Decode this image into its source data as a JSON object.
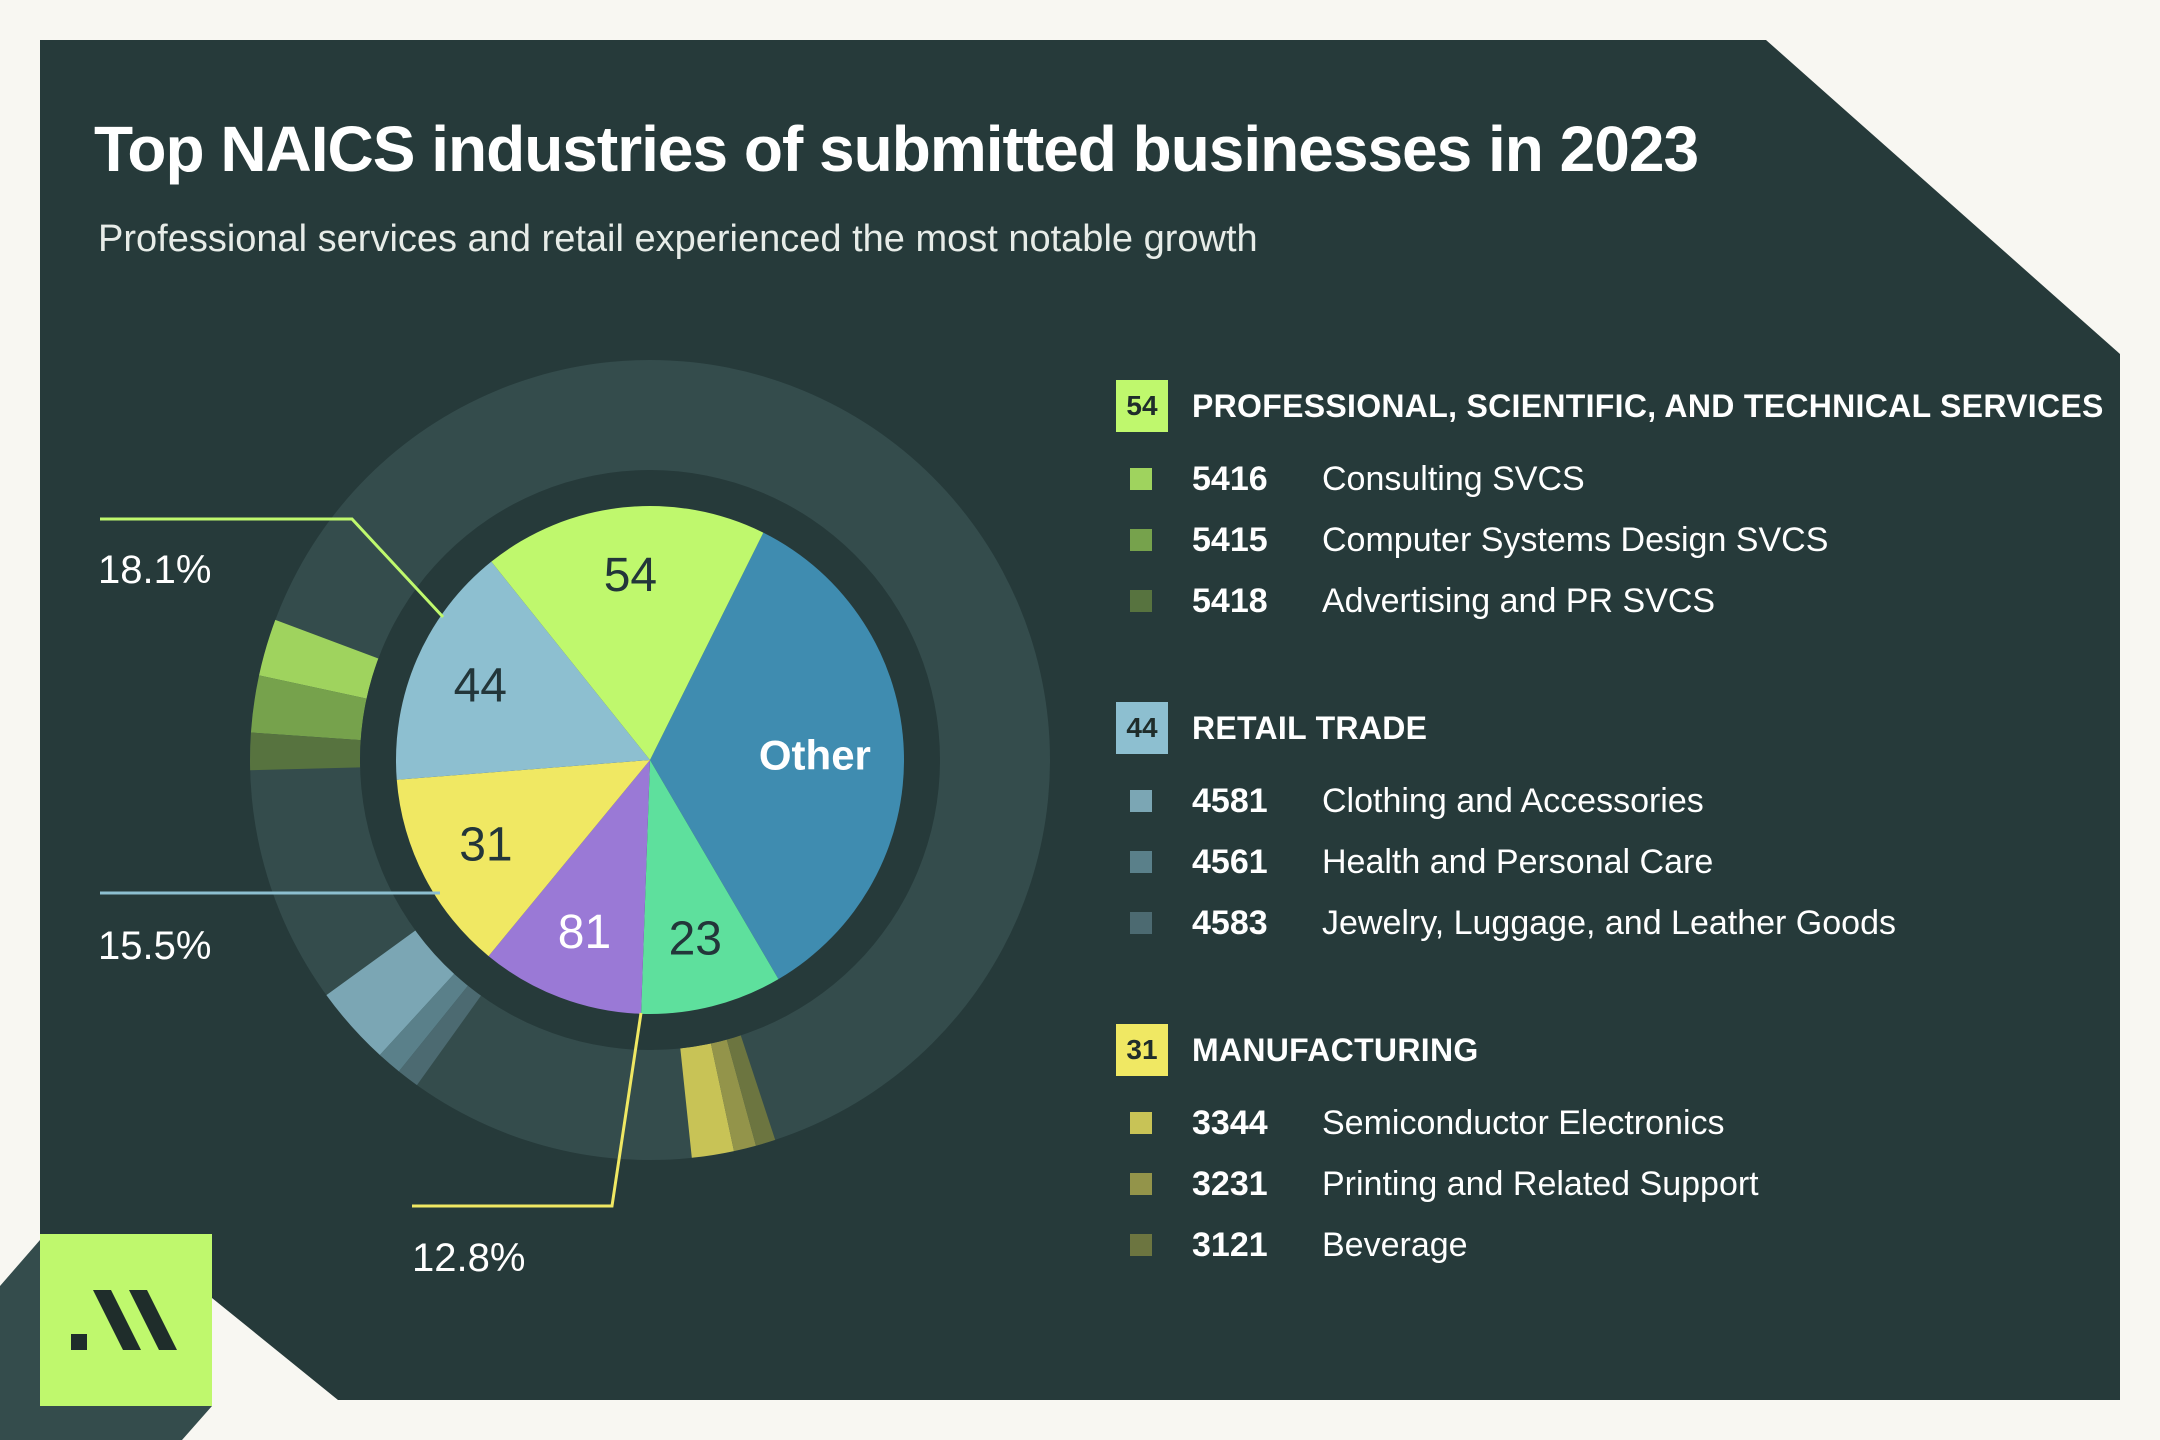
{
  "title": "Top NAICS industries of submitted businesses in 2023",
  "subtitle": "Professional services and retail experienced the most notable growth",
  "chart_data": {
    "type": "pie",
    "title": "Top NAICS industries of submitted businesses in 2023",
    "subtitle": "Professional services and retail experienced the most notable growth",
    "inner_pie": {
      "slices": [
        {
          "label": "Other",
          "value": 34.2,
          "color": "#3f8cb0"
        },
        {
          "label": "23",
          "value": 9.0,
          "color": "#5ee09d"
        },
        {
          "label": "81",
          "value": 10.4,
          "color": "#9a79d6"
        },
        {
          "label": "31",
          "value": 12.8,
          "color": "#f0e863"
        },
        {
          "label": "44",
          "value": 15.5,
          "color": "#8dbfd0"
        },
        {
          "label": "54",
          "value": 18.1,
          "color": "#bff86d"
        }
      ]
    },
    "callouts": [
      {
        "sector": "54",
        "label": "18.1%",
        "color": "#bff86d"
      },
      {
        "sector": "44",
        "label": "15.5%",
        "color": "#8dbfd0"
      },
      {
        "sector": "31",
        "label": "12.8%",
        "color": "#f0e863"
      }
    ],
    "outer_ring": {
      "segments": [
        {
          "code": "5416",
          "sector": "54",
          "value": 2.3,
          "color": "#9fd35e"
        },
        {
          "code": "5415",
          "sector": "54",
          "value": 2.3,
          "color": "#76a24c"
        },
        {
          "code": "5418",
          "sector": "54",
          "value": 1.5,
          "color": "#57733f"
        },
        {
          "code": "4581",
          "sector": "44",
          "value": 3.2,
          "color": "#7ba6b4"
        },
        {
          "code": "4561",
          "sector": "44",
          "value": 1.0,
          "color": "#5a808a"
        },
        {
          "code": "4583",
          "sector": "44",
          "value": 0.9,
          "color": "#4c6a71"
        },
        {
          "code": "3344",
          "sector": "31",
          "value": 1.7,
          "color": "#c8c356"
        },
        {
          "code": "3231",
          "sector": "31",
          "value": 0.9,
          "color": "#93944a"
        },
        {
          "code": "3121",
          "sector": "31",
          "value": 0.8,
          "color": "#6c7540"
        }
      ]
    }
  },
  "legend": {
    "groups": [
      {
        "code": "54",
        "name": "PROFESSIONAL, SCIENTIFIC, AND TECHNICAL SERVICES",
        "color": "#bff86d",
        "items": [
          {
            "code": "5416",
            "name": "Consulting SVCS",
            "color": "#9fd35e"
          },
          {
            "code": "5415",
            "name": "Computer Systems Design SVCS",
            "color": "#76a24c"
          },
          {
            "code": "5418",
            "name": "Advertising and PR SVCS",
            "color": "#57733f"
          }
        ]
      },
      {
        "code": "44",
        "name": "RETAIL TRADE",
        "color": "#8dbfd0",
        "items": [
          {
            "code": "4581",
            "name": "Clothing and Accessories",
            "color": "#7ba6b4"
          },
          {
            "code": "4561",
            "name": "Health and Personal Care",
            "color": "#5a808a"
          },
          {
            "code": "4583",
            "name": "Jewelry, Luggage, and Leather Goods",
            "color": "#4c6a71"
          }
        ]
      },
      {
        "code": "31",
        "name": "MANUFACTURING",
        "color": "#f0e863",
        "items": [
          {
            "code": "3344",
            "name": "Semiconductor Electronics",
            "color": "#c8c356"
          },
          {
            "code": "3231",
            "name": "Printing and Related Support",
            "color": "#93944a"
          },
          {
            "code": "3121",
            "name": "Beverage",
            "color": "#6c7540"
          }
        ]
      }
    ]
  },
  "colors": {
    "page_bg": "#f8f7f2",
    "panel_bg": "#263a3a",
    "ring_base": "#344c4c",
    "accent": "#bff86d"
  }
}
